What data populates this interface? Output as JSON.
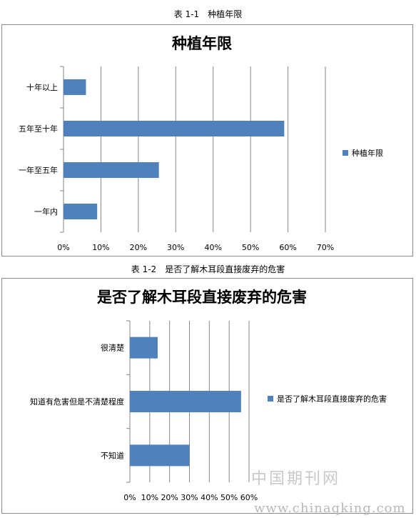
{
  "captions": {
    "table1": "表 1-1　种植年限",
    "table2": "表 1-2　是否了解木耳段直接废弃的危害"
  },
  "watermark": {
    "cn": "中国期刊网",
    "url": "www.chinaqking.com"
  },
  "colors": {
    "bar": "#4F81BD",
    "grid": "#868686"
  },
  "chart_data": [
    {
      "type": "bar",
      "orientation": "horizontal",
      "title": "种植年限",
      "categories": [
        "十年以上",
        "五年至十年",
        "一年至五年",
        "一年内"
      ],
      "series": [
        {
          "name": "种植年限",
          "values": [
            6,
            59,
            25.5,
            9
          ]
        }
      ],
      "xlim": [
        0,
        70
      ],
      "xticks": [
        "0%",
        "10%",
        "20%",
        "30%",
        "40%",
        "50%",
        "60%",
        "70%"
      ],
      "grid": true,
      "legend": "right"
    },
    {
      "type": "bar",
      "orientation": "horizontal",
      "title": "是否了解木耳段直接废弃的危害",
      "categories": [
        "很清楚",
        "知道有危害但是不清楚程度",
        "不知道"
      ],
      "series": [
        {
          "name": "是否了解木耳段直接废弃的危害",
          "values": [
            14,
            56,
            30
          ]
        }
      ],
      "xlim": [
        0,
        60
      ],
      "xticks": [
        "0%",
        "10%",
        "20%",
        "30%",
        "40%",
        "50%",
        "60%"
      ],
      "grid": true,
      "legend": "right"
    }
  ]
}
